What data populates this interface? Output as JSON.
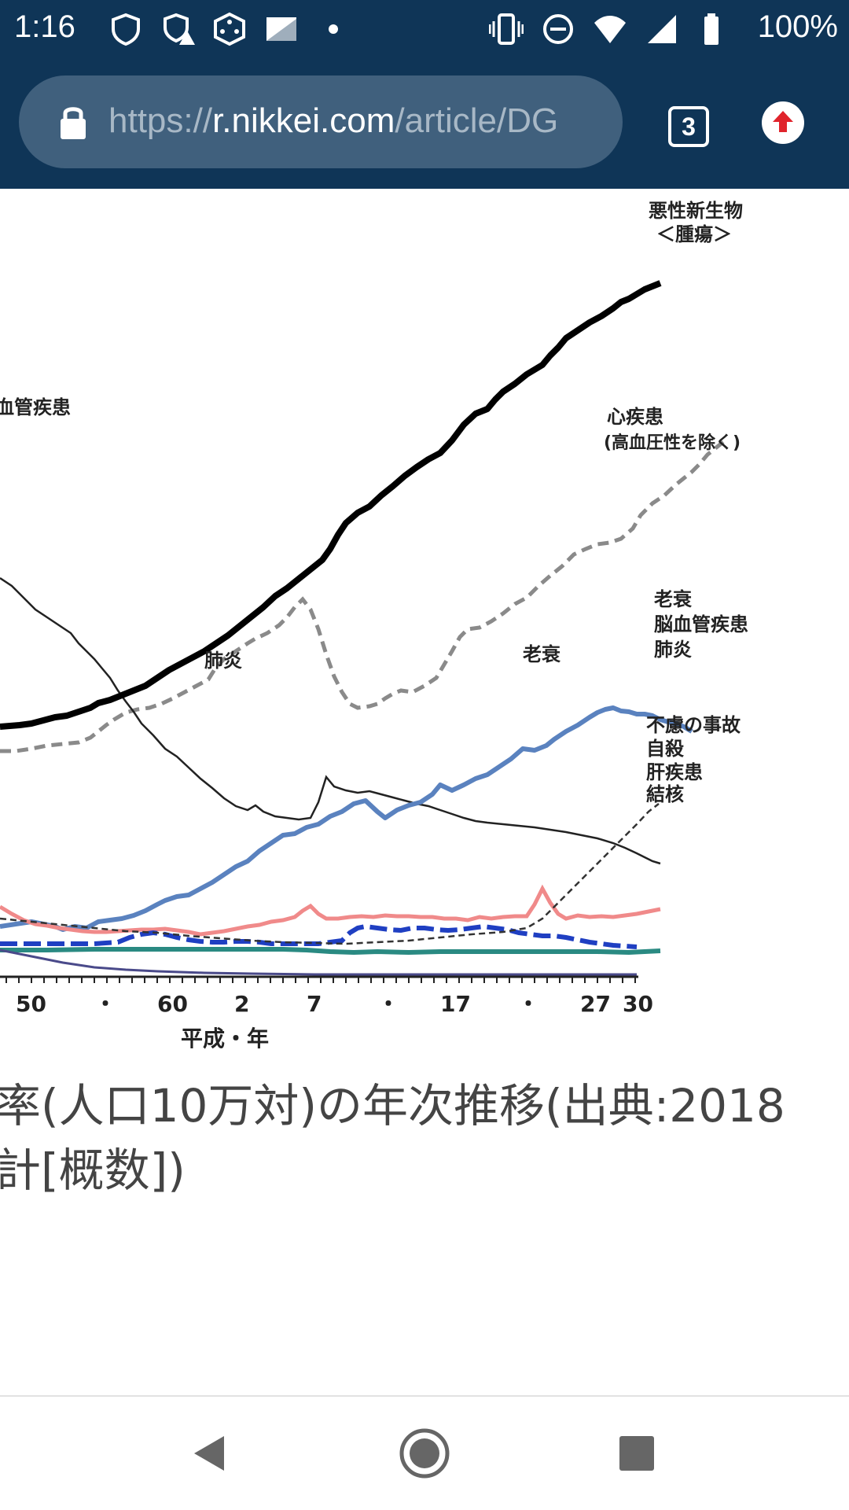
{
  "status_bar": {
    "time": "1:16",
    "battery": "100%",
    "left_icons": [
      "shield-icon",
      "shield-warning-icon",
      "dice-icon",
      "photo-icon",
      "dot-icon"
    ],
    "right_icons": [
      "vibrate-icon",
      "dnd-icon",
      "wifi-icon",
      "signal-icon",
      "battery-icon"
    ]
  },
  "toolbar": {
    "url_scheme": "https://",
    "url_host": "r.nikkei.com",
    "url_path": "/article/DG",
    "tab_count": "3"
  },
  "chart": {
    "x_tick_labels": [
      "50",
      "・",
      "60",
      "2",
      "7",
      "・",
      "17",
      "・",
      "27",
      "30"
    ],
    "x_axis_label": "平成・年",
    "series_labels": {
      "malignant": "悪性新生物",
      "malignant_sub": "＜腫瘍＞",
      "cerebrovascular_left": "血管疾患",
      "heart": "心疾患",
      "heart_sub": "(高血圧性を除く)",
      "senility": "老衰",
      "cerebrovascular": "脳血管疾患",
      "pneumonia": "肺炎",
      "accident": "不慮の事故",
      "suicide": "自殺",
      "liver": "肝疾患",
      "tuberculosis": "結核"
    },
    "inline_labels": {
      "pneumonia": "肺炎",
      "senility": "老衰"
    },
    "colors": {
      "malignant": "#000000",
      "heart": "#8a8a8a",
      "cerebrovascular": "#222222",
      "pneumonia": "#5a82bf",
      "senility": "#333333",
      "accident": "#f08a8a",
      "suicide": "#1f3fc2",
      "liver": "#2a8a82",
      "tuberculosis": "#4a4a8a"
    }
  },
  "caption": {
    "line1": "率(人口10万対)の年次推移(出典:2018",
    "line2": "計[概数])"
  },
  "nav": {
    "back": "back-icon",
    "home": "home-icon",
    "recents": "recents-icon"
  }
}
